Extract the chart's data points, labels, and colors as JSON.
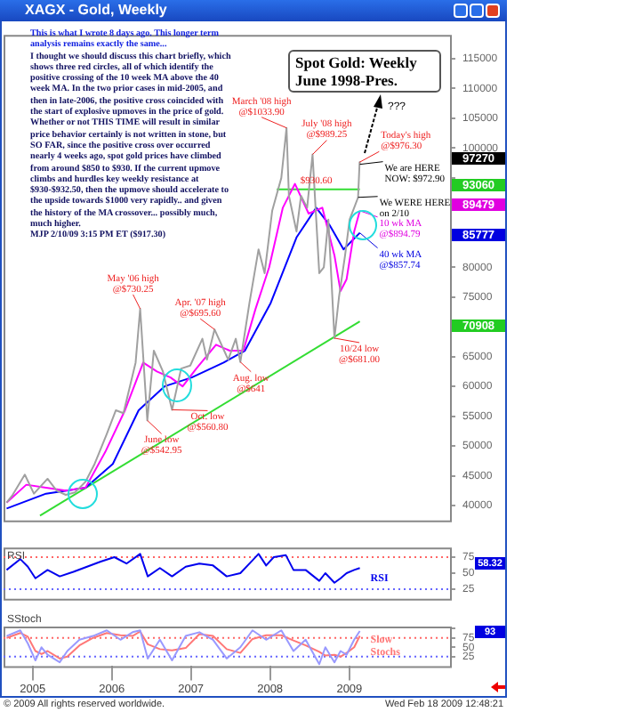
{
  "chart_data": [
    {
      "type": "line",
      "title": "XAGX - Gold, Weekly",
      "subtitle": "Spot Gold: Weekly June 1998-Pres.",
      "xlim": [
        "2004-08-20",
        "2010-04-10"
      ],
      "ylim": [
        37500,
        119000
      ],
      "yticks": [
        40000,
        45000,
        50000,
        55000,
        60000,
        65000,
        {
          "value": 70000,
          "label": null
        },
        75000,
        80000,
        {
          "value": 85000,
          "label": null
        },
        {
          "value": 90000,
          "label": null
        },
        {
          "value": 95000,
          "label": null
        },
        100000,
        105000,
        110000,
        115000
      ],
      "tick_labels": "y",
      "legend": false,
      "marker": "none",
      "line_style": "solid",
      "series": [
        {
          "color": "#a0a0a0",
          "x": [
            "2004-09-03",
            "2004-10-01",
            "2004-11-26",
            "2005-01-07",
            "2005-03-11",
            "2005-04-22",
            "2005-06-03",
            "2005-07-15",
            "2005-09-02",
            "2005-10-14",
            "2005-12-09",
            "2006-01-20",
            "2006-02-24",
            "2006-04-21",
            "2006-05-12",
            "2006-06-14",
            "2006-07-14",
            "2006-08-25",
            "2006-10-06",
            "2006-11-17",
            "2006-12-29",
            "2007-02-23",
            "2007-03-16",
            "2007-04-20",
            "2007-06-22",
            "2007-07-27",
            "2007-08-17",
            "2007-09-28",
            "2007-11-09",
            "2007-12-07",
            "2008-01-11",
            "2008-02-22",
            "2008-03-17",
            "2008-03-28",
            "2008-05-02",
            "2008-05-23",
            "2008-06-20",
            "2008-07-15",
            "2008-08-15",
            "2008-09-05",
            "2008-09-26",
            "2008-10-24",
            "2008-11-14",
            "2008-12-12",
            "2009-01-02",
            "2009-01-23",
            "2009-02-10",
            "2009-02-17",
            "2009-02-18"
          ],
          "values": [
            40500,
            41800,
            45200,
            42000,
            44500,
            42500,
            41800,
            42200,
            44000,
            47000,
            52000,
            56000,
            55500,
            64000,
            73025,
            54295,
            66000,
            62500,
            56080,
            63000,
            63500,
            68000,
            64500,
            69560,
            64500,
            68000,
            64100,
            74000,
            83000,
            79000,
            89500,
            95000,
            103390,
            92000,
            86000,
            92000,
            90000,
            98925,
            79000,
            80000,
            88000,
            68100,
            75000,
            82000,
            88000,
            90000,
            91730,
            97630,
            97270
          ]
        },
        {
          "color": "#ff00ff",
          "x": [
            "2004-09-03",
            "2004-12-03",
            "2005-03-04",
            "2005-06-03",
            "2005-09-02",
            "2005-12-02",
            "2006-03-03",
            "2006-05-26",
            "2006-07-28",
            "2006-09-29",
            "2006-11-24",
            "2007-01-26",
            "2007-04-27",
            "2007-06-29",
            "2007-08-31",
            "2007-10-26",
            "2007-12-28",
            "2008-02-29",
            "2008-04-25",
            "2008-06-27",
            "2008-08-29",
            "2008-10-24",
            "2008-11-21",
            "2008-12-19",
            "2009-01-23",
            "2009-02-18"
          ],
          "values": [
            40500,
            43500,
            43000,
            42500,
            43000,
            49000,
            56000,
            64000,
            62500,
            61500,
            60000,
            63000,
            67000,
            66000,
            66000,
            73000,
            80000,
            90000,
            94000,
            89000,
            90000,
            82000,
            76000,
            78000,
            86000,
            89479
          ]
        },
        {
          "color": "#0000ff",
          "x": [
            "2004-09-03",
            "2005-03-04",
            "2005-09-02",
            "2006-01-06",
            "2006-05-05",
            "2006-09-01",
            "2007-01-05",
            "2007-06-01",
            "2007-09-07",
            "2008-01-04",
            "2008-05-02",
            "2008-08-01",
            "2008-10-03",
            "2008-12-05",
            "2009-02-18"
          ],
          "values": [
            39500,
            42000,
            43000,
            47000,
            56000,
            60000,
            61500,
            64000,
            66000,
            74000,
            85000,
            90000,
            87000,
            83000,
            85774
          ]
        },
        {
          "color": "#33dd33",
          "x": [
            "2005-02-04",
            "2009-02-18"
          ],
          "values": [
            38300,
            70908
          ]
        },
        {
          "color": "#33dd33",
          "x": [
            "2008-02-01",
            "2009-02-18"
          ],
          "values": [
            93060,
            93060
          ]
        }
      ],
      "annotations": [
        "This is what I wrote 8 days ago. This longer term analysis remains exactly the same...",
        "I thought we should discuss this chart briefly, which shows three red circles, all of which identify the positive crossing of the 10 week MA above the 40 week MA. In the two prior cases in mid-2005, and then in late-2006, the positive cross coincided with the start of explosive upmoves in the price of gold. Whether or not THIS TIME will result in similar price behavior certainly is not written in stone, but SO FAR, since the positive cross over occurred nearly 4 weeks ago, spot gold prices have climbed from around $850 to $930. If the current upmove climbs and hurdles key weekly resistance at $930-$932.50, then the upmove should accelerate to the upside towards $1000 very rapidly.. and given the history of the MA crossover... possibly much, much higher.",
        "MJP 2/10/09 3:15 PM ET ($917.30)",
        "© 2009 All rights reserved worldwide.",
        "Wed Feb 18 2009 12:48:21",
        "???",
        "97270",
        "93060",
        "89479",
        "85777",
        "70908",
        {
          "text": "May '06 high @$730.25",
          "x": "2006-05-12",
          "y": 73025
        },
        {
          "text": "June low @$542.95",
          "x": "2006-06-14",
          "y": 54295
        },
        {
          "text": "Oct. low @$560.80",
          "x": "2006-10-06",
          "y": 56080
        },
        {
          "text": "Apr. '07 high @$695.60",
          "x": "2007-04-20",
          "y": 69560
        },
        {
          "text": "Aug. low @$641",
          "x": "2007-08-17",
          "y": 64100
        },
        {
          "text": "March '08 high @$1033.90",
          "x": "2008-03-17",
          "y": 103390
        },
        {
          "text": "July '08 high @$989.25",
          "x": "2008-07-15",
          "y": 98925
        },
        {
          "text": "10/24 low @$681.00",
          "x": "2008-10-24",
          "y": 68100
        },
        {
          "text": "Today's high @$976.30",
          "x": "2009-02-17",
          "y": 97630
        },
        {
          "text": "We are HERE NOW: $972.90",
          "x": "2009-02-18",
          "y": 97270
        },
        {
          "text": "$930.60",
          "x": "2008-08-01",
          "y": 93060
        },
        {
          "text": "We WERE HERE on 2/10",
          "x": "2009-02-10",
          "y": 91730
        },
        {
          "text": "10 wk MA @$894.79",
          "x": "2009-02-18",
          "y": 89479
        },
        {
          "text": "40 wk MA @$857.74",
          "x": "2009-02-18",
          "y": 85774
        }
      ]
    },
    {
      "type": "line",
      "title": "RSI",
      "xlim": [
        "2004-08-20",
        "2010-04-10"
      ],
      "ylim": [
        10,
        90
      ],
      "yticks": [
        25,
        50,
        75
      ],
      "tick_labels": "y",
      "legend": false,
      "marker": "none",
      "line_style": "solid",
      "ref_lines": [
        {
          "axis": "y",
          "value": 75,
          "color": "#ff6666",
          "line_style": "dotted"
        },
        {
          "axis": "y",
          "value": 25,
          "color": "#6666ff",
          "line_style": "dotted"
        }
      ],
      "series": [
        {
          "name": "RSI",
          "color": "#0000ee",
          "x": [
            "2004-09-03",
            "2004-11-05",
            "2004-12-10",
            "2005-01-14",
            "2005-03-11",
            "2005-05-06",
            "2005-07-08",
            "2005-09-09",
            "2005-11-11",
            "2006-01-13",
            "2006-03-10",
            "2006-05-12",
            "2006-06-16",
            "2006-08-11",
            "2006-10-06",
            "2006-12-08",
            "2007-02-09",
            "2007-04-13",
            "2007-06-15",
            "2007-08-17",
            "2007-10-12",
            "2007-11-09",
            "2007-12-14",
            "2008-01-18",
            "2008-03-14",
            "2008-04-18",
            "2008-06-13",
            "2008-08-15",
            "2008-09-12",
            "2008-10-24",
            "2008-11-21",
            "2008-12-19",
            "2009-01-23",
            "2009-02-18"
          ],
          "values": [
            55,
            72,
            60,
            42,
            55,
            45,
            52,
            60,
            68,
            75,
            65,
            80,
            45,
            58,
            45,
            60,
            65,
            62,
            45,
            50,
            70,
            80,
            62,
            75,
            78,
            55,
            55,
            38,
            50,
            35,
            42,
            50,
            55,
            58
          ]
        }
      ],
      "annotations": [
        "58.32"
      ]
    },
    {
      "type": "line",
      "title": "SStoch",
      "xlim": [
        "2004-08-20",
        "2010-04-10"
      ],
      "ylim": [
        0,
        105
      ],
      "xticks": [
        "2005",
        "2006",
        "2007",
        "2008",
        "2009"
      ],
      "yticks": [
        25,
        50,
        75,
        {
          "value": 100,
          "label": null
        }
      ],
      "legend": false,
      "marker": "none",
      "line_style": "solid",
      "ref_lines": [
        {
          "axis": "y",
          "value": 75,
          "color": "#ff6666",
          "line_style": "dotted"
        },
        {
          "axis": "y",
          "value": 25,
          "color": "#6666ff",
          "line_style": "dotted"
        }
      ],
      "series": [
        {
          "color": "#9999ff",
          "x": [
            "2004-09-03",
            "2004-11-05",
            "2004-12-10",
            "2005-01-14",
            "2005-02-11",
            "2005-03-11",
            "2005-05-06",
            "2005-06-10",
            "2005-08-05",
            "2005-10-07",
            "2005-12-09",
            "2006-02-10",
            "2006-04-07",
            "2006-05-12",
            "2006-06-16",
            "2006-08-11",
            "2006-10-06",
            "2006-12-08",
            "2007-02-09",
            "2007-04-13",
            "2007-06-15",
            "2007-08-17",
            "2007-10-12",
            "2007-12-14",
            "2008-02-22",
            "2008-04-18",
            "2008-06-13",
            "2008-08-15",
            "2008-09-12",
            "2008-10-24",
            "2008-11-21",
            "2008-12-19",
            "2009-01-23",
            "2009-02-18"
          ],
          "values": [
            80,
            95,
            60,
            15,
            50,
            30,
            10,
            40,
            70,
            80,
            95,
            70,
            90,
            95,
            20,
            70,
            15,
            80,
            90,
            70,
            20,
            50,
            95,
            70,
            95,
            40,
            70,
            5,
            50,
            10,
            40,
            30,
            70,
            93
          ]
        },
        {
          "name": "Slow Stochs",
          "color": "#ff7777",
          "x": [
            "2004-09-03",
            "2004-11-05",
            "2004-12-10",
            "2005-01-14",
            "2005-02-11",
            "2005-03-11",
            "2005-05-06",
            "2005-06-10",
            "2005-08-05",
            "2005-10-07",
            "2005-12-09",
            "2006-02-10",
            "2006-04-07",
            "2006-05-12",
            "2006-06-16",
            "2006-08-11",
            "2006-10-06",
            "2006-12-08",
            "2007-02-09",
            "2007-04-13",
            "2007-06-15",
            "2007-08-17",
            "2007-10-12",
            "2007-12-14",
            "2008-02-22",
            "2008-04-18",
            "2008-06-13",
            "2008-08-15",
            "2008-09-12",
            "2008-10-24",
            "2008-11-21",
            "2008-12-19",
            "2009-01-23",
            "2009-02-18"
          ],
          "values": [
            75,
            88,
            78,
            40,
            32,
            40,
            20,
            25,
            55,
            75,
            88,
            82,
            80,
            92,
            58,
            45,
            42,
            48,
            85,
            80,
            45,
            35,
            72,
            82,
            82,
            68,
            55,
            38,
            28,
            30,
            25,
            35,
            50,
            80
          ]
        }
      ],
      "annotations": [
        "93"
      ]
    }
  ]
}
